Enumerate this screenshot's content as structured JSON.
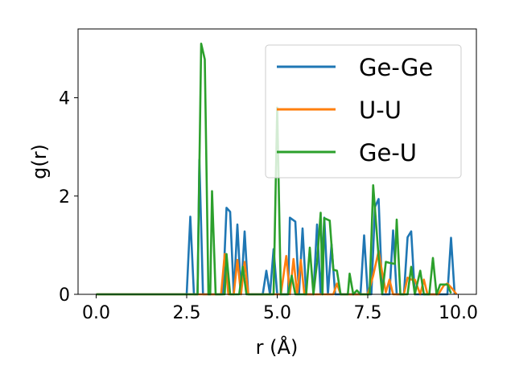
{
  "chart_data": {
    "type": "line",
    "xlabel": "r (Å)",
    "ylabel": "g(r)",
    "xlim": [
      -0.5,
      10.5
    ],
    "ylim": [
      0,
      5.4
    ],
    "xticks": [
      0.0,
      2.5,
      5.0,
      7.5,
      10.0
    ],
    "xtick_labels": [
      "0.0",
      "2.5",
      "5.0",
      "7.5",
      "10.0"
    ],
    "yticks": [
      0,
      2,
      4
    ],
    "ytick_labels": [
      "0",
      "2",
      "4"
    ],
    "grid": false,
    "legend_position": "top-right",
    "series": [
      {
        "name": "Ge-Ge",
        "color": "#1f77b4",
        "points": [
          [
            0.0,
            0
          ],
          [
            2.5,
            0
          ],
          [
            2.6,
            1.58
          ],
          [
            2.7,
            0
          ],
          [
            2.8,
            0
          ],
          [
            2.85,
            2.74
          ],
          [
            2.95,
            0
          ],
          [
            3.5,
            0
          ],
          [
            3.6,
            1.76
          ],
          [
            3.7,
            1.68
          ],
          [
            3.8,
            0
          ],
          [
            3.9,
            1.42
          ],
          [
            4.0,
            0
          ],
          [
            4.1,
            1.28
          ],
          [
            4.2,
            0
          ],
          [
            4.6,
            0
          ],
          [
            4.7,
            0.48
          ],
          [
            4.8,
            0
          ],
          [
            4.9,
            0.92
          ],
          [
            5.0,
            0
          ],
          [
            5.3,
            0
          ],
          [
            5.35,
            1.56
          ],
          [
            5.5,
            1.48
          ],
          [
            5.6,
            0
          ],
          [
            5.7,
            1.34
          ],
          [
            5.8,
            0
          ],
          [
            6.0,
            0
          ],
          [
            6.1,
            1.42
          ],
          [
            6.2,
            0
          ],
          [
            6.3,
            1.56
          ],
          [
            6.4,
            0
          ],
          [
            6.5,
            1.02
          ],
          [
            6.6,
            0
          ],
          [
            7.3,
            0
          ],
          [
            7.4,
            1.2
          ],
          [
            7.5,
            0
          ],
          [
            7.6,
            0
          ],
          [
            7.7,
            1.78
          ],
          [
            7.8,
            1.94
          ],
          [
            7.9,
            0
          ],
          [
            8.1,
            0
          ],
          [
            8.2,
            1.3
          ],
          [
            8.3,
            0
          ],
          [
            8.5,
            0
          ],
          [
            8.6,
            1.16
          ],
          [
            8.7,
            1.28
          ],
          [
            8.8,
            0
          ],
          [
            9.7,
            0
          ],
          [
            9.8,
            1.15
          ],
          [
            9.9,
            0
          ]
        ]
      },
      {
        "name": "U-U",
        "color": "#ff7f0e",
        "points": [
          [
            0.0,
            0
          ],
          [
            3.45,
            0
          ],
          [
            3.55,
            0.82
          ],
          [
            3.65,
            0
          ],
          [
            3.8,
            0
          ],
          [
            3.9,
            0.7
          ],
          [
            4.0,
            0
          ],
          [
            4.1,
            0.66
          ],
          [
            4.2,
            0
          ],
          [
            5.1,
            0
          ],
          [
            5.25,
            0.78
          ],
          [
            5.35,
            0
          ],
          [
            5.45,
            0.72
          ],
          [
            5.55,
            0
          ],
          [
            5.65,
            0.7
          ],
          [
            5.75,
            0
          ],
          [
            6.55,
            0
          ],
          [
            6.65,
            0.22
          ],
          [
            6.75,
            0
          ],
          [
            7.5,
            0
          ],
          [
            7.65,
            0.38
          ],
          [
            7.8,
            0.88
          ],
          [
            7.9,
            0.44
          ],
          [
            8.0,
            0.04
          ],
          [
            8.1,
            0.3
          ],
          [
            8.2,
            0
          ],
          [
            8.5,
            0
          ],
          [
            8.6,
            0.34
          ],
          [
            8.7,
            0.3
          ],
          [
            8.8,
            0.3
          ],
          [
            8.95,
            0
          ],
          [
            9.05,
            0.3
          ],
          [
            9.15,
            0
          ],
          [
            9.45,
            0
          ],
          [
            9.6,
            0.18
          ],
          [
            9.7,
            0.22
          ],
          [
            9.85,
            0.1
          ],
          [
            9.95,
            0
          ]
        ]
      },
      {
        "name": "Ge-U",
        "color": "#2ca02c",
        "points": [
          [
            0.0,
            0
          ],
          [
            2.8,
            0
          ],
          [
            2.9,
            5.1
          ],
          [
            3.0,
            4.78
          ],
          [
            3.1,
            0
          ],
          [
            3.15,
            0
          ],
          [
            3.2,
            2.1
          ],
          [
            3.3,
            0
          ],
          [
            3.55,
            0
          ],
          [
            3.6,
            0.82
          ],
          [
            3.7,
            0
          ],
          [
            3.95,
            0
          ],
          [
            4.05,
            0.56
          ],
          [
            4.15,
            0
          ],
          [
            4.9,
            0
          ],
          [
            5.0,
            3.8
          ],
          [
            5.1,
            0
          ],
          [
            5.3,
            0
          ],
          [
            5.4,
            0.38
          ],
          [
            5.5,
            0
          ],
          [
            5.8,
            0
          ],
          [
            5.9,
            0.95
          ],
          [
            6.0,
            0
          ],
          [
            6.1,
            0.65
          ],
          [
            6.2,
            1.66
          ],
          [
            6.25,
            0
          ],
          [
            6.3,
            1.55
          ],
          [
            6.45,
            1.5
          ],
          [
            6.55,
            0.5
          ],
          [
            6.65,
            0.48
          ],
          [
            6.75,
            0
          ],
          [
            6.95,
            0
          ],
          [
            7.0,
            0.42
          ],
          [
            7.1,
            0
          ],
          [
            7.2,
            0.08
          ],
          [
            7.3,
            0
          ],
          [
            7.55,
            0
          ],
          [
            7.65,
            2.22
          ],
          [
            7.8,
            0.76
          ],
          [
            7.9,
            0
          ],
          [
            8.0,
            0.66
          ],
          [
            8.1,
            0.64
          ],
          [
            8.25,
            0.62
          ],
          [
            8.3,
            1.52
          ],
          [
            8.4,
            0
          ],
          [
            8.6,
            0
          ],
          [
            8.7,
            0.56
          ],
          [
            8.8,
            0
          ],
          [
            8.95,
            0.48
          ],
          [
            9.05,
            0
          ],
          [
            9.2,
            0
          ],
          [
            9.3,
            0.74
          ],
          [
            9.4,
            0
          ],
          [
            9.5,
            0.2
          ],
          [
            9.6,
            0.2
          ],
          [
            9.7,
            0.2
          ],
          [
            9.8,
            0.02
          ]
        ]
      }
    ]
  }
}
